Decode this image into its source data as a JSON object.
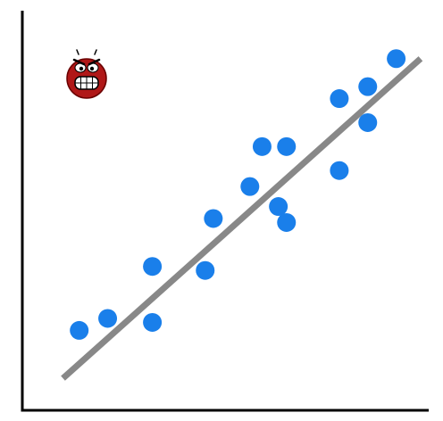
{
  "chart_data": {
    "type": "scatter",
    "title": "",
    "xlabel": "",
    "ylabel": "",
    "xlim": [
      0,
      10
    ],
    "ylim": [
      0,
      10
    ],
    "grid": false,
    "points": [
      {
        "x": 1.4,
        "y": 2.0
      },
      {
        "x": 2.1,
        "y": 2.3
      },
      {
        "x": 3.2,
        "y": 2.2
      },
      {
        "x": 3.2,
        "y": 3.6
      },
      {
        "x": 4.5,
        "y": 3.5
      },
      {
        "x": 4.7,
        "y": 4.8
      },
      {
        "x": 5.6,
        "y": 5.6
      },
      {
        "x": 5.9,
        "y": 6.6
      },
      {
        "x": 6.3,
        "y": 5.1
      },
      {
        "x": 6.5,
        "y": 4.7
      },
      {
        "x": 6.5,
        "y": 6.6
      },
      {
        "x": 7.8,
        "y": 6.0
      },
      {
        "x": 7.8,
        "y": 7.8
      },
      {
        "x": 8.5,
        "y": 7.2
      },
      {
        "x": 8.5,
        "y": 8.1
      },
      {
        "x": 9.2,
        "y": 8.8
      }
    ],
    "trendline": {
      "x1": 1.0,
      "y1": 0.8,
      "x2": 9.8,
      "y2": 8.8
    },
    "colors": {
      "points": "#1a7fea",
      "trendline": "#888888",
      "axes": "#000000"
    },
    "annotation_icon": "angry-face-icon"
  }
}
